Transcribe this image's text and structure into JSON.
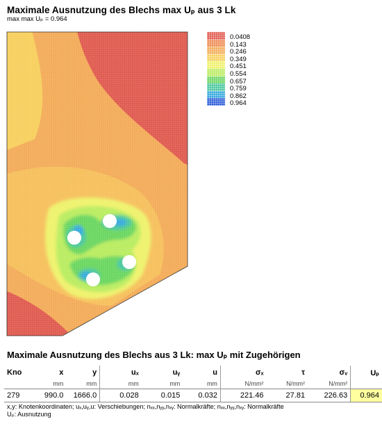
{
  "header": {
    "title": "Maximale Ausnutzung des Blechs max Uₚ aus 3 Lk",
    "subtitle": "max max Uₚ = 0.964"
  },
  "legend": {
    "items": [
      {
        "label": "0.0408",
        "color": "#e05a4f"
      },
      {
        "label": "0.143",
        "color": "#ee8a52"
      },
      {
        "label": "0.246",
        "color": "#f3ab58"
      },
      {
        "label": "0.349",
        "color": "#f7cf5c"
      },
      {
        "label": "0.451",
        "color": "#eef26a"
      },
      {
        "label": "0.554",
        "color": "#b9ec5f"
      },
      {
        "label": "0.657",
        "color": "#69d65f"
      },
      {
        "label": "0.759",
        "color": "#4ac79e"
      },
      {
        "label": "0.862",
        "color": "#35a9de"
      },
      {
        "label": "0.964",
        "color": "#2f5fd8"
      }
    ]
  },
  "table": {
    "title": "Maximale Ausnutzung des Blechs aus 3 Lk: max Uₚ mit Zugehörigen",
    "headers": {
      "kno": "Kno",
      "x": "x",
      "y": "y",
      "ux": "uₓ",
      "uy": "uᵧ",
      "u": "u",
      "sx": "σₓ",
      "tau": "τ",
      "sv": "σᵥ",
      "up": "Uₚ"
    },
    "units": {
      "x": "mm",
      "y": "mm",
      "ux": "mm",
      "uy": "mm",
      "u": "mm",
      "sx": "N/mm²",
      "tau": "N/mm²",
      "sv": "N/mm²"
    },
    "row": {
      "kno": "279",
      "x": "990.0",
      "y": "1666.0",
      "ux": "0.028",
      "uy": "0.015",
      "u": "0.032",
      "sx": "221.46",
      "tau": "27.81",
      "sv": "226.63",
      "up": "0.964"
    }
  },
  "notes": {
    "line1": "x,y: Knotenkoordinaten;  uₓ,uᵧ,u: Verschiebungen;  nₓₓ,nᵧᵧ,nₓᵧ: Normalkräfte;  nₓₓ,nᵧᵧ,nₓᵧ: Normalkräfte",
    "line2": "Uₚ: Ausnutzung"
  }
}
